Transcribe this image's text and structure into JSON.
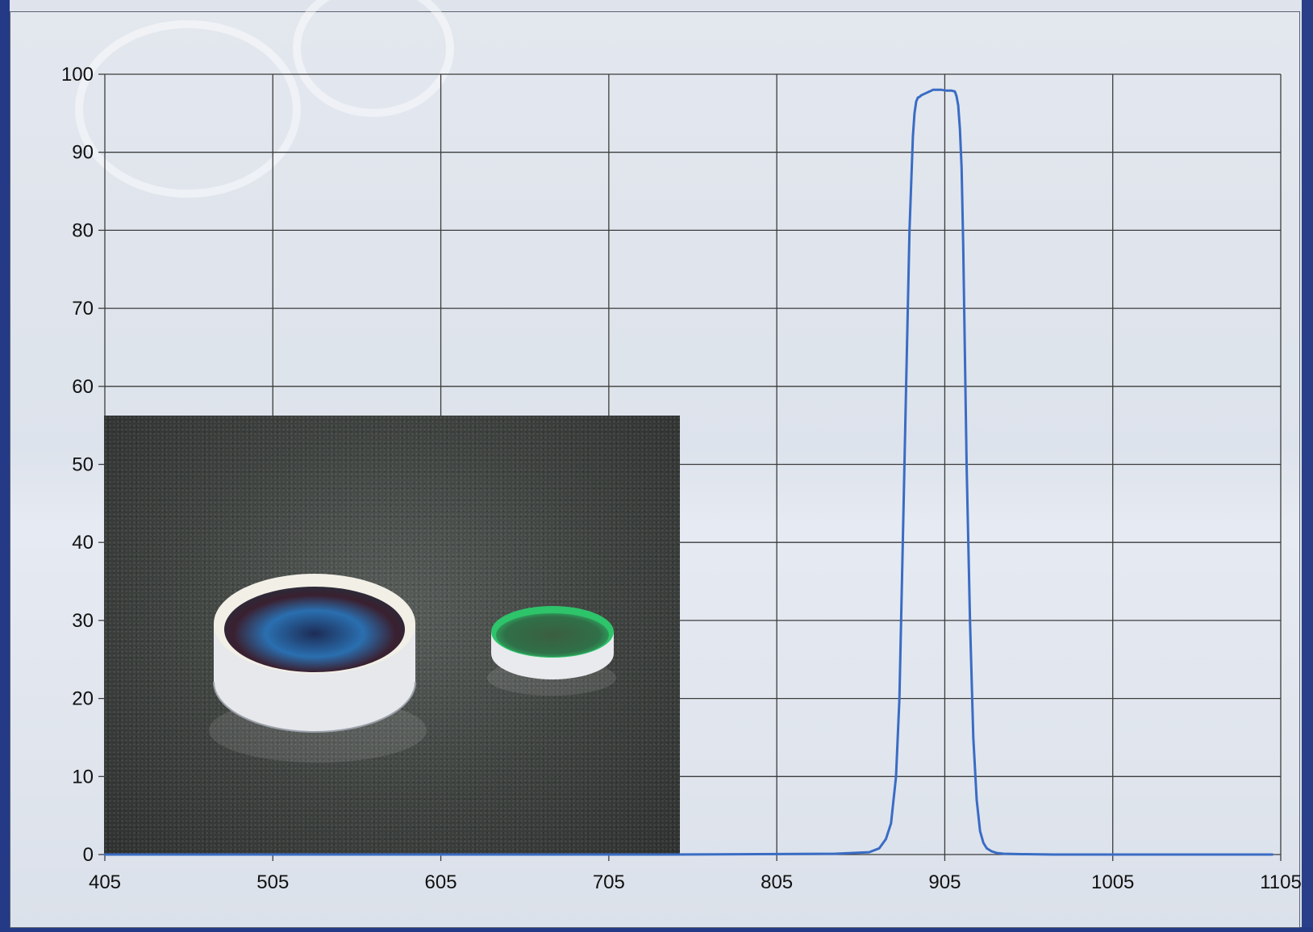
{
  "chart_data": {
    "type": "line",
    "title": "",
    "xlabel": "",
    "ylabel": "",
    "xlim": [
      405,
      1105
    ],
    "ylim": [
      0,
      100
    ],
    "x_ticks": [
      "405",
      "505",
      "605",
      "705",
      "805",
      "905",
      "1005",
      "1105"
    ],
    "y_ticks": [
      "0",
      "10",
      "20",
      "30",
      "40",
      "50",
      "60",
      "70",
      "80",
      "90",
      "100"
    ],
    "grid": true,
    "legend": "none",
    "series": [
      {
        "color": "#3a6cc4",
        "x": [
          405,
          740,
          840,
          860,
          866,
          870,
          873,
          876,
          878,
          880,
          882,
          884,
          886,
          887,
          888,
          889,
          890,
          891,
          893,
          896,
          898,
          900,
          903,
          906,
          909,
          911,
          912,
          913,
          914,
          915,
          916,
          917,
          918,
          920,
          922,
          924,
          926,
          928,
          930,
          933,
          936,
          940,
          950,
          970,
          1000,
          1050,
          1100
        ],
        "y": [
          0,
          0,
          0.1,
          0.3,
          0.8,
          2,
          4,
          10,
          20,
          40,
          60,
          80,
          92,
          95,
          96.5,
          97,
          97.1,
          97.3,
          97.5,
          97.8,
          98,
          98,
          98,
          97.9,
          97.9,
          97.8,
          97.2,
          96,
          93,
          88,
          78,
          64,
          50,
          30,
          15,
          7,
          3,
          1.5,
          0.8,
          0.4,
          0.2,
          0.1,
          0.05,
          0,
          0,
          0,
          0
        ]
      }
    ]
  },
  "inset_photo": {
    "subject": "two round optical filters on a dark textured surface",
    "colors": {
      "large_filter_coating": "#2a6fb0",
      "small_filter_coating": "#2ec46a"
    }
  }
}
